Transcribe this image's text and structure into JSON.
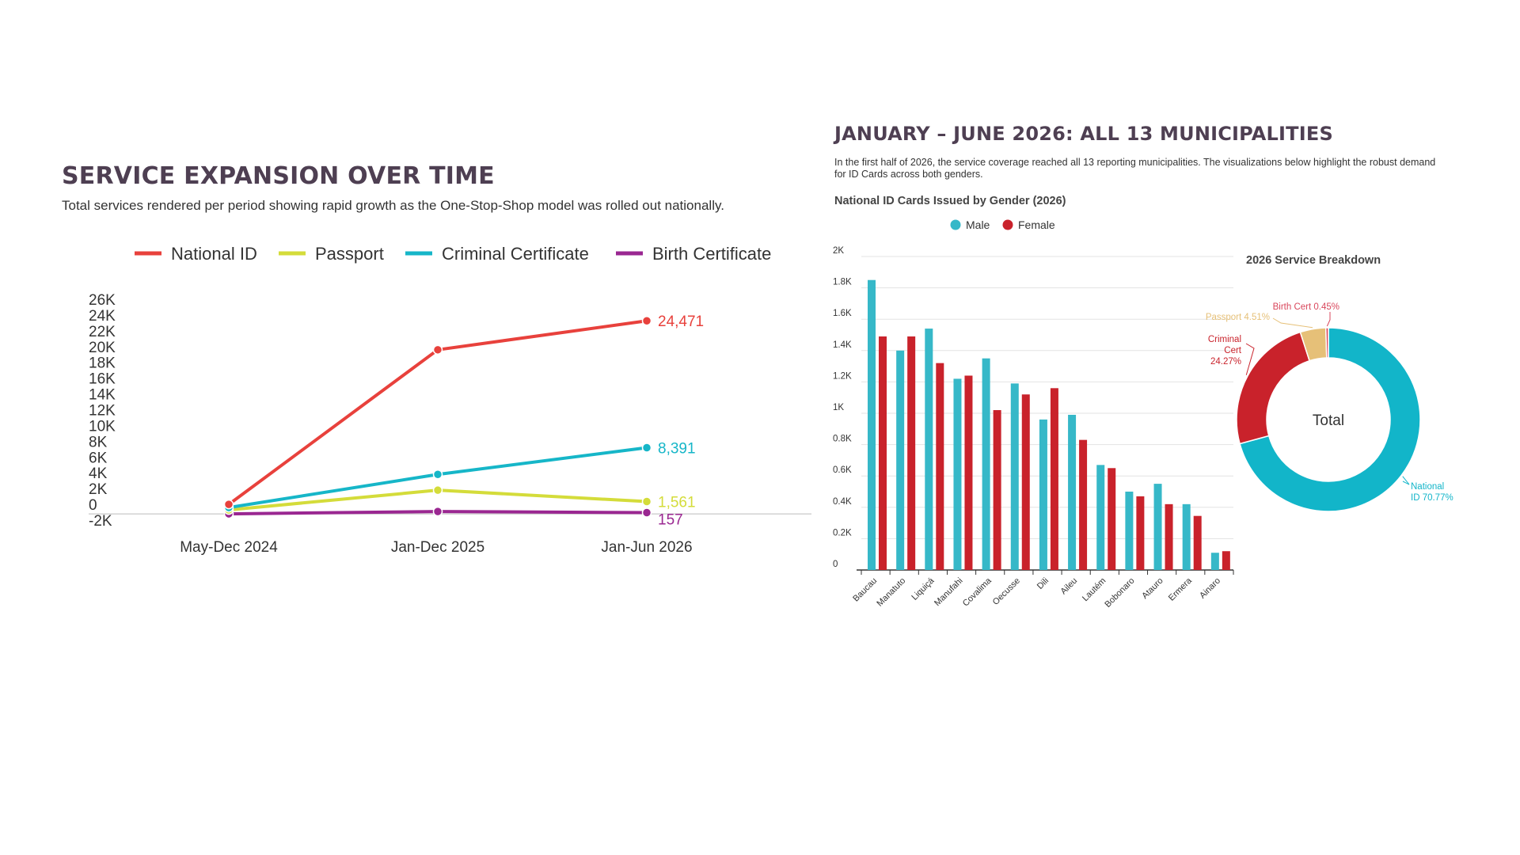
{
  "left_panel": {
    "title": "SERVICE EXPANSION OVER TIME",
    "subtitle": "Total services rendered per period showing rapid growth as the One-Stop-Shop model was rolled out nationally."
  },
  "right_panel": {
    "title": "JANUARY – JUNE 2026: ALL 13 MUNICIPALITIES",
    "description": "In the first half of 2026, the service coverage reached all 13 reporting municipalities. The visualizations below highlight the robust demand for ID Cards across both genders.",
    "bar_title": "National ID Cards Issued by Gender (2026)",
    "donut_title": "2026 Service Breakdown"
  },
  "chart_data": [
    {
      "type": "line",
      "categories": [
        "May-Dec 2024",
        "Jan-Dec 2025",
        "Jan-Jun 2026"
      ],
      "y_ticks": [
        "26K",
        "24K",
        "22K",
        "20K",
        "18K",
        "16K",
        "14K",
        "12K",
        "10K",
        "8K",
        "6K",
        "4K",
        "2K",
        "0",
        "-2K"
      ],
      "ylim": [
        -2000,
        26000
      ],
      "legend_position": "top",
      "series": [
        {
          "name": "National ID",
          "color": "#e8413c",
          "values": [
            1200,
            20800,
            24471
          ],
          "end_label": "24,471"
        },
        {
          "name": "Passport",
          "color": "#d4dc3a",
          "values": [
            500,
            3000,
            1561
          ],
          "end_label": "1,561"
        },
        {
          "name": "Criminal Certificate",
          "color": "#16b6c8",
          "values": [
            800,
            5000,
            8391
          ],
          "end_label": "8,391"
        },
        {
          "name": "Birth Certificate",
          "color": "#9a2791",
          "values": [
            0,
            300,
            157
          ],
          "end_label": "157"
        }
      ]
    },
    {
      "type": "bar",
      "categories": [
        "Baucau",
        "Manatuto",
        "Liquiçá",
        "Manufahi",
        "Covalima",
        "Oecusse",
        "Dili",
        "Aileu",
        "Lautém",
        "Bobonaro",
        "Atauro",
        "Ermera",
        "Ainaro"
      ],
      "y_ticks": [
        "2K",
        "1.8K",
        "1.6K",
        "1.4K",
        "1.2K",
        "1K",
        "0.8K",
        "0.6K",
        "0.4K",
        "0.2K",
        "0"
      ],
      "ylim": [
        0,
        2000
      ],
      "legend_position": "top",
      "series": [
        {
          "name": "Male",
          "color": "#36b8c8",
          "values": [
            1850,
            1400,
            1540,
            1220,
            1350,
            1190,
            960,
            990,
            670,
            500,
            550,
            420,
            110
          ]
        },
        {
          "name": "Female",
          "color": "#c9222b",
          "values": [
            1490,
            1490,
            1320,
            1240,
            1020,
            1120,
            1160,
            830,
            650,
            470,
            420,
            345,
            120
          ]
        }
      ]
    },
    {
      "type": "pie",
      "center_label": "Total",
      "slices": [
        {
          "name": "National ID",
          "value": 70.77,
          "color": "#12b5c9",
          "label_lines": [
            "National",
            "ID 70.77%"
          ]
        },
        {
          "name": "Criminal Cert",
          "value": 24.27,
          "color": "#c9222b",
          "label_lines": [
            "Criminal",
            "Cert",
            "24.27%"
          ]
        },
        {
          "name": "Passport",
          "value": 4.51,
          "color": "#e6c078",
          "label_lines": [
            "Passport 4.51%"
          ]
        },
        {
          "name": "Birth Cert",
          "value": 0.45,
          "color": "#d9475c",
          "label_lines": [
            "Birth Cert 0.45%"
          ]
        }
      ]
    }
  ]
}
